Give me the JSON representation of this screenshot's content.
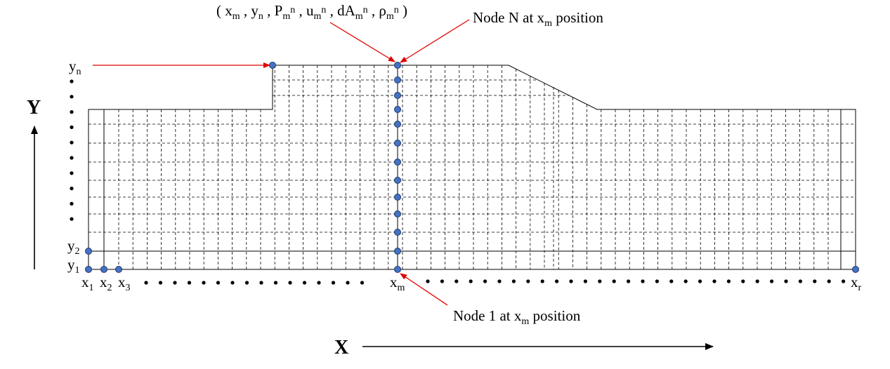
{
  "labels": {
    "tuple": {
      "open": "( ",
      "x": "x",
      "x_sub": "m",
      "sep1": " , ",
      "y": "y",
      "y_sub": "n",
      "sep2": " , ",
      "p": "P",
      "p_sub": "m",
      "p_sup": "n",
      "sep3": " , ",
      "u": "u",
      "u_sub": "m",
      "u_sup": "n",
      "sep4": " , ",
      "da": "dA",
      "da_sub": "m",
      "da_sup": "n",
      "sep5": " , ",
      "rho": "ρ",
      "rho_sub": "m",
      "rho_sup": "n",
      "close": " )"
    },
    "node_n": {
      "pre": "Node N at x",
      "sub": "m",
      "post": " position"
    },
    "node_1": {
      "pre": "Node 1 at x",
      "sub": "m",
      "post": " position"
    },
    "y_n": {
      "main": "y",
      "sub": "n"
    },
    "y_2": {
      "main": "y",
      "sub": "2"
    },
    "y_1": {
      "main": "y",
      "sub": "1"
    },
    "x_1": {
      "main": "x",
      "sub": "1"
    },
    "x_2": {
      "main": "x",
      "sub": "2"
    },
    "x_3": {
      "main": "x",
      "sub": "3"
    },
    "x_m": {
      "main": "x",
      "sub": "m"
    },
    "x_r": {
      "main": "x",
      "sub": "r"
    },
    "axis_x": "X",
    "axis_y": "Y"
  },
  "colors": {
    "node_fill": "#4472c4",
    "arrow": "#e00000",
    "line": "#000000"
  }
}
